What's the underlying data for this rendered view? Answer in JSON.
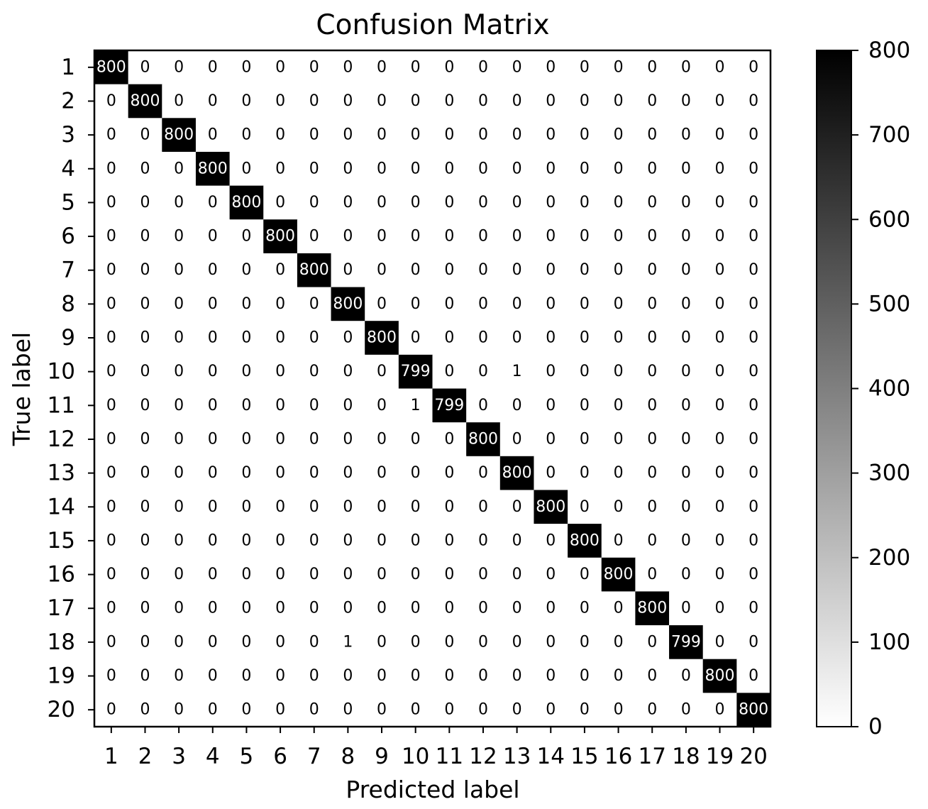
{
  "chart_data": {
    "type": "heatmap",
    "title": "Confusion Matrix",
    "xlabel": "Predicted label",
    "ylabel": "True label",
    "x_tick_labels": [
      "1",
      "2",
      "3",
      "4",
      "5",
      "6",
      "7",
      "8",
      "9",
      "10",
      "11",
      "12",
      "13",
      "14",
      "15",
      "16",
      "17",
      "18",
      "19",
      "20"
    ],
    "y_tick_labels": [
      "1",
      "2",
      "3",
      "4",
      "5",
      "6",
      "7",
      "8",
      "9",
      "10",
      "11",
      "12",
      "13",
      "14",
      "15",
      "16",
      "17",
      "18",
      "19",
      "20"
    ],
    "matrix": [
      [
        800,
        0,
        0,
        0,
        0,
        0,
        0,
        0,
        0,
        0,
        0,
        0,
        0,
        0,
        0,
        0,
        0,
        0,
        0,
        0
      ],
      [
        0,
        800,
        0,
        0,
        0,
        0,
        0,
        0,
        0,
        0,
        0,
        0,
        0,
        0,
        0,
        0,
        0,
        0,
        0,
        0
      ],
      [
        0,
        0,
        800,
        0,
        0,
        0,
        0,
        0,
        0,
        0,
        0,
        0,
        0,
        0,
        0,
        0,
        0,
        0,
        0,
        0
      ],
      [
        0,
        0,
        0,
        800,
        0,
        0,
        0,
        0,
        0,
        0,
        0,
        0,
        0,
        0,
        0,
        0,
        0,
        0,
        0,
        0
      ],
      [
        0,
        0,
        0,
        0,
        800,
        0,
        0,
        0,
        0,
        0,
        0,
        0,
        0,
        0,
        0,
        0,
        0,
        0,
        0,
        0
      ],
      [
        0,
        0,
        0,
        0,
        0,
        800,
        0,
        0,
        0,
        0,
        0,
        0,
        0,
        0,
        0,
        0,
        0,
        0,
        0,
        0
      ],
      [
        0,
        0,
        0,
        0,
        0,
        0,
        800,
        0,
        0,
        0,
        0,
        0,
        0,
        0,
        0,
        0,
        0,
        0,
        0,
        0
      ],
      [
        0,
        0,
        0,
        0,
        0,
        0,
        0,
        800,
        0,
        0,
        0,
        0,
        0,
        0,
        0,
        0,
        0,
        0,
        0,
        0
      ],
      [
        0,
        0,
        0,
        0,
        0,
        0,
        0,
        0,
        800,
        0,
        0,
        0,
        0,
        0,
        0,
        0,
        0,
        0,
        0,
        0
      ],
      [
        0,
        0,
        0,
        0,
        0,
        0,
        0,
        0,
        0,
        799,
        0,
        0,
        1,
        0,
        0,
        0,
        0,
        0,
        0,
        0
      ],
      [
        0,
        0,
        0,
        0,
        0,
        0,
        0,
        0,
        0,
        1,
        799,
        0,
        0,
        0,
        0,
        0,
        0,
        0,
        0,
        0
      ],
      [
        0,
        0,
        0,
        0,
        0,
        0,
        0,
        0,
        0,
        0,
        0,
        800,
        0,
        0,
        0,
        0,
        0,
        0,
        0,
        0
      ],
      [
        0,
        0,
        0,
        0,
        0,
        0,
        0,
        0,
        0,
        0,
        0,
        0,
        800,
        0,
        0,
        0,
        0,
        0,
        0,
        0
      ],
      [
        0,
        0,
        0,
        0,
        0,
        0,
        0,
        0,
        0,
        0,
        0,
        0,
        0,
        800,
        0,
        0,
        0,
        0,
        0,
        0
      ],
      [
        0,
        0,
        0,
        0,
        0,
        0,
        0,
        0,
        0,
        0,
        0,
        0,
        0,
        0,
        800,
        0,
        0,
        0,
        0,
        0
      ],
      [
        0,
        0,
        0,
        0,
        0,
        0,
        0,
        0,
        0,
        0,
        0,
        0,
        0,
        0,
        0,
        800,
        0,
        0,
        0,
        0
      ],
      [
        0,
        0,
        0,
        0,
        0,
        0,
        0,
        0,
        0,
        0,
        0,
        0,
        0,
        0,
        0,
        0,
        800,
        0,
        0,
        0
      ],
      [
        0,
        0,
        0,
        0,
        0,
        0,
        0,
        1,
        0,
        0,
        0,
        0,
        0,
        0,
        0,
        0,
        0,
        799,
        0,
        0
      ],
      [
        0,
        0,
        0,
        0,
        0,
        0,
        0,
        0,
        0,
        0,
        0,
        0,
        0,
        0,
        0,
        0,
        0,
        0,
        800,
        0
      ],
      [
        0,
        0,
        0,
        0,
        0,
        0,
        0,
        0,
        0,
        0,
        0,
        0,
        0,
        0,
        0,
        0,
        0,
        0,
        0,
        800
      ]
    ],
    "value_range": [
      0,
      800
    ],
    "colormap": "Greys",
    "color_low": "#ffffff",
    "color_high": "#000000",
    "colorbar_ticks": [
      0,
      100,
      200,
      300,
      400,
      500,
      600,
      700,
      800
    ],
    "text_color_dark": "#000000",
    "text_color_light": "#ffffff"
  }
}
